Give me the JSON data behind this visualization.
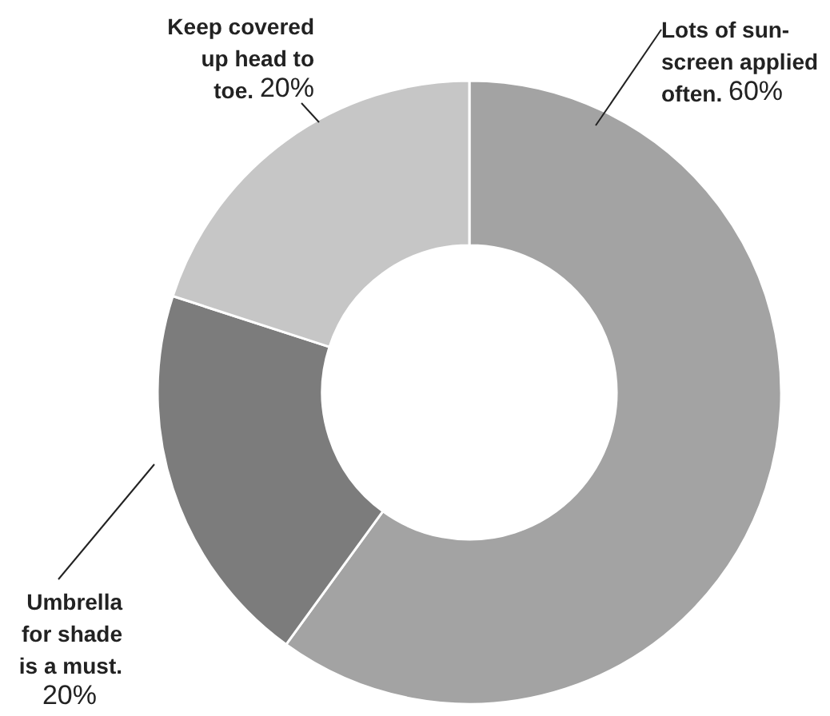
{
  "chart_data": {
    "type": "donut",
    "categories": [
      "Lots of sun-\nscreen applied\noften.",
      "Umbrella\nfor shade\nis a must.",
      "Keep covered\nup head to\ntoe."
    ],
    "values": [
      60,
      20,
      20
    ],
    "colors": [
      "#a3a3a3",
      "#7c7c7c",
      "#c6c6c6"
    ],
    "value_labels": [
      "60%",
      "20%",
      "20%"
    ]
  }
}
